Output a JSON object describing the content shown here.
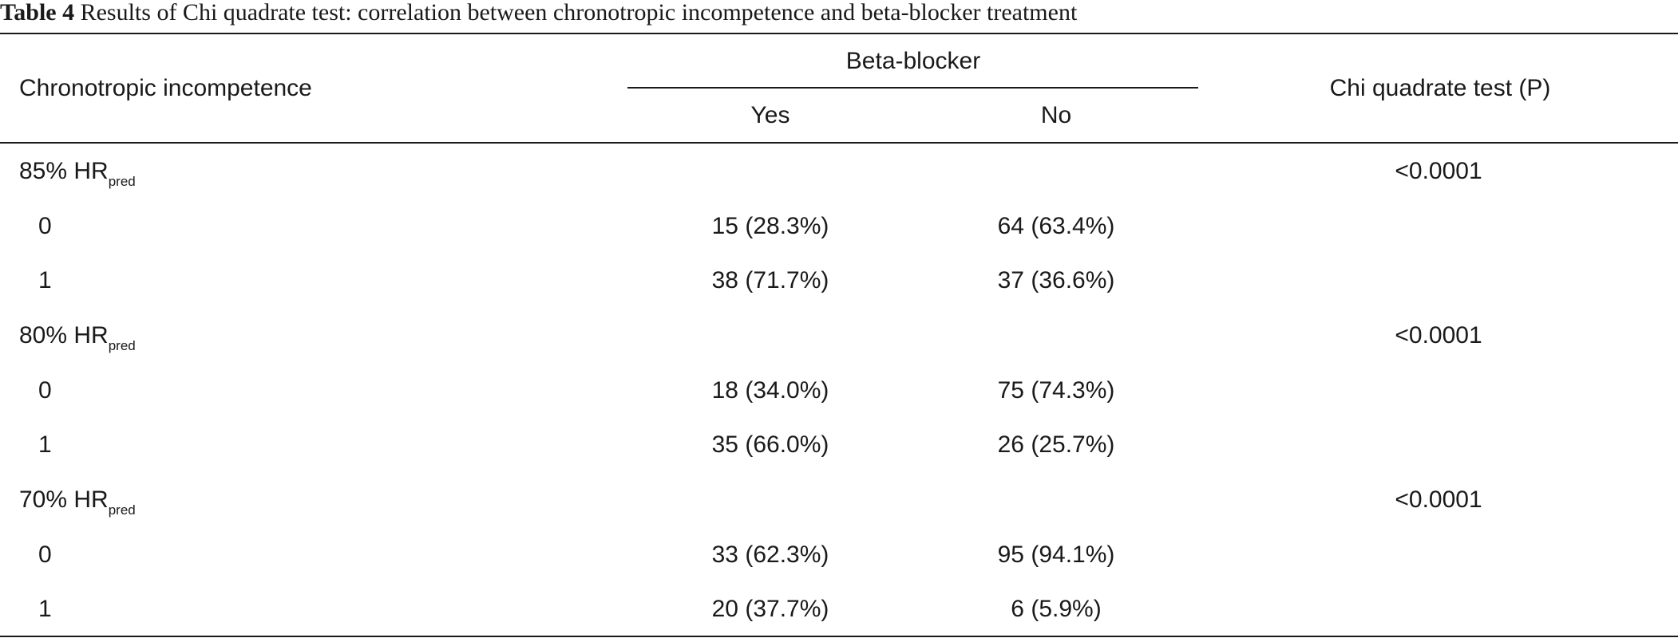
{
  "caption": {
    "label": "Table 4",
    "text": " Results of Chi quadrate test: correlation between chronotropic incompetence and beta-blocker treatment"
  },
  "header": {
    "row_label": "Chronotropic incompetence",
    "group_label": "Beta-blocker",
    "col_yes": "Yes",
    "col_no": "No",
    "col_p": "Chi quadrate test (P)"
  },
  "groups": [
    {
      "pct": "85% HR",
      "sub": "pred",
      "p": "<0.0001",
      "rows": [
        {
          "level": "0",
          "yes": "15 (28.3%)",
          "no": "64 (63.4%)"
        },
        {
          "level": "1",
          "yes": "38 (71.7%)",
          "no": "37 (36.6%)"
        }
      ]
    },
    {
      "pct": "80% HR",
      "sub": "pred",
      "p": "<0.0001",
      "rows": [
        {
          "level": "0",
          "yes": "18 (34.0%)",
          "no": "75 (74.3%)"
        },
        {
          "level": "1",
          "yes": "35 (66.0%)",
          "no": "26 (25.7%)"
        }
      ]
    },
    {
      "pct": "70% HR",
      "sub": "pred",
      "p": "<0.0001",
      "rows": [
        {
          "level": "0",
          "yes": "33 (62.3%)",
          "no": "95 (94.1%)"
        },
        {
          "level": "1",
          "yes": "20 (37.7%)",
          "no": "6 (5.9%)"
        }
      ]
    }
  ]
}
